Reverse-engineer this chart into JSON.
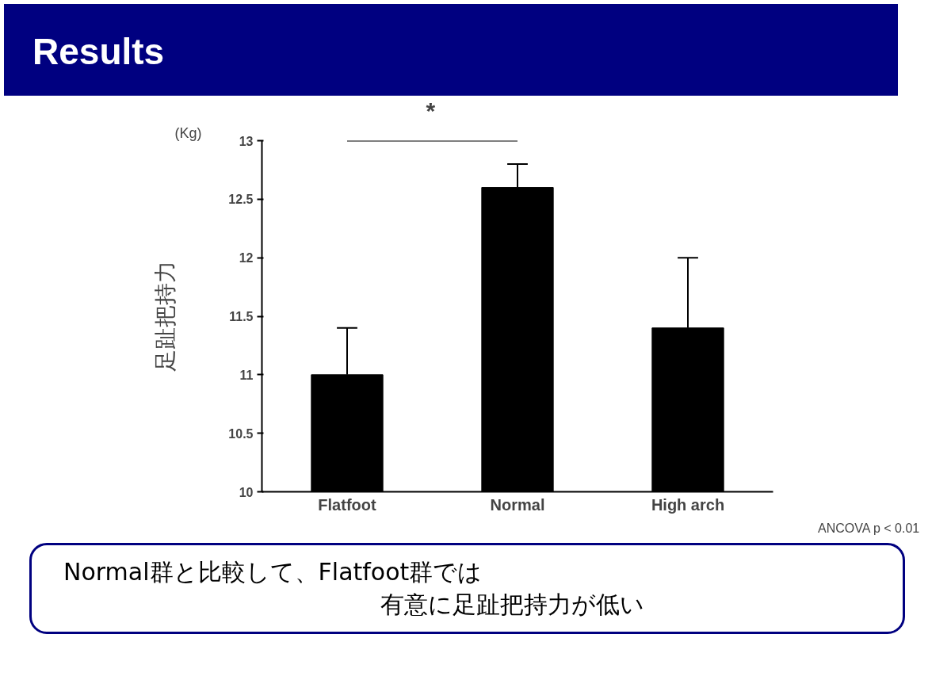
{
  "chart_data": {
    "type": "bar",
    "title": "Results",
    "ylabel": "足趾把持力",
    "categories": [
      "Flatfoot",
      "Normal",
      "High arch"
    ],
    "values": [
      11.0,
      12.6,
      11.4
    ],
    "errors": [
      [
        11.0,
        11.4
      ],
      [
        12.6,
        12.8
      ],
      [
        11.4,
        12.0
      ]
    ],
    "color": "#000000",
    "ylim": [
      10,
      13
    ],
    "yticks": [
      10,
      10.5,
      11,
      11.5,
      12,
      12.5,
      13
    ],
    "annotations": [
      "(Kg)",
      "*",
      "ANCOVA  p < 0.01",
      "Normal群と比較して、Flatfoot群では",
      "有意に足趾把持力が低い"
    ]
  }
}
